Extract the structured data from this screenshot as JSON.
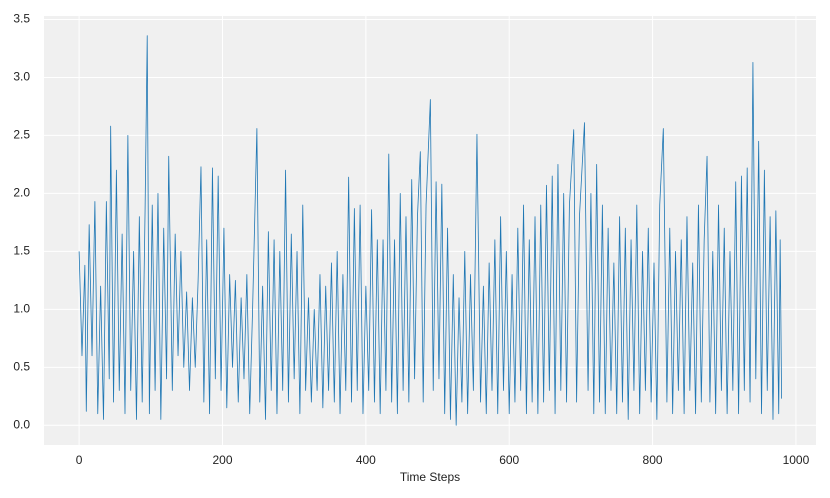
{
  "chart_data": {
    "type": "line",
    "xlabel": "Time Steps",
    "color": "#1f77b4",
    "grid": true,
    "xlim": [
      -49,
      1028
    ],
    "ylim": [
      -0.17,
      3.53
    ],
    "xticks": [
      0,
      200,
      400,
      600,
      800,
      1000
    ],
    "yticks": [
      {
        "value": 0,
        "label": "0.0"
      },
      0.5,
      {
        "value": 1,
        "label": "1.0"
      },
      1.5,
      {
        "value": 2,
        "label": "2.0"
      },
      2.5,
      {
        "value": 3,
        "label": "3.0"
      },
      3.5
    ],
    "x": [
      0,
      4,
      8,
      10,
      14,
      18,
      22,
      26,
      30,
      34,
      38,
      42,
      44,
      48,
      52,
      56,
      60,
      64,
      68,
      72,
      76,
      80,
      84,
      88,
      92,
      95,
      98,
      102,
      106,
      110,
      114,
      118,
      122,
      125,
      130,
      134,
      138,
      142,
      146,
      150,
      154,
      158,
      162,
      166,
      170,
      174,
      178,
      182,
      186,
      190,
      194,
      198,
      202,
      206,
      210,
      214,
      218,
      222,
      226,
      230,
      234,
      238,
      242,
      248,
      252,
      256,
      260,
      264,
      268,
      272,
      276,
      280,
      284,
      288,
      292,
      296,
      300,
      304,
      308,
      312,
      316,
      320,
      324,
      328,
      332,
      336,
      340,
      344,
      348,
      352,
      356,
      360,
      364,
      368,
      372,
      376,
      380,
      384,
      388,
      392,
      396,
      400,
      404,
      408,
      412,
      416,
      420,
      424,
      428,
      432,
      436,
      440,
      444,
      448,
      452,
      456,
      460,
      464,
      468,
      472,
      476,
      480,
      484,
      490,
      494,
      498,
      502,
      506,
      510,
      514,
      518,
      522,
      526,
      530,
      534,
      538,
      542,
      546,
      550,
      555,
      560,
      564,
      568,
      572,
      576,
      580,
      584,
      588,
      592,
      596,
      600,
      604,
      608,
      612,
      616,
      620,
      624,
      628,
      632,
      636,
      640,
      644,
      648,
      652,
      656,
      660,
      664,
      668,
      672,
      676,
      680,
      684,
      690,
      694,
      698,
      705,
      710,
      714,
      718,
      722,
      726,
      730,
      734,
      738,
      742,
      746,
      750,
      754,
      758,
      762,
      766,
      770,
      774,
      778,
      782,
      786,
      790,
      794,
      798,
      802,
      806,
      810,
      815,
      820,
      824,
      828,
      832,
      836,
      840,
      844,
      848,
      852,
      856,
      860,
      864,
      868,
      872,
      876,
      880,
      884,
      888,
      892,
      896,
      900,
      904,
      908,
      912,
      916,
      920,
      924,
      928,
      932,
      936,
      940,
      944,
      948,
      952,
      956,
      960,
      964,
      968,
      972,
      976,
      978,
      980
    ],
    "values": [
      1.5,
      0.6,
      1.38,
      0.12,
      1.73,
      0.6,
      1.93,
      0.1,
      1.2,
      0.05,
      1.93,
      0.4,
      2.58,
      0.2,
      2.2,
      0.3,
      1.65,
      0.1,
      2.5,
      0.3,
      1.5,
      0.05,
      1.8,
      0.2,
      1.85,
      3.36,
      0.1,
      1.9,
      0.3,
      2.0,
      0.05,
      1.7,
      0.4,
      2.32,
      0.3,
      1.65,
      0.6,
      1.5,
      0.5,
      1.15,
      0.3,
      1.1,
      0.5,
      1.25,
      2.23,
      0.2,
      1.6,
      0.1,
      2.22,
      0.4,
      2.15,
      0.3,
      1.7,
      0.15,
      1.3,
      0.5,
      1.25,
      0.2,
      1.1,
      0.4,
      1.3,
      0.1,
      1.0,
      2.56,
      0.2,
      1.2,
      0.05,
      1.67,
      0.3,
      1.6,
      0.1,
      1.5,
      0.3,
      2.2,
      0.2,
      1.65,
      0.4,
      1.5,
      0.1,
      1.9,
      0.3,
      1.1,
      0.2,
      1.0,
      0.3,
      1.3,
      0.15,
      1.2,
      0.3,
      1.4,
      0.2,
      1.5,
      0.1,
      1.3,
      0.3,
      2.14,
      0.2,
      1.87,
      0.3,
      1.9,
      0.1,
      1.2,
      0.3,
      1.86,
      0.2,
      1.6,
      0.1,
      1.6,
      0.3,
      2.34,
      0.2,
      1.6,
      0.1,
      2.0,
      0.3,
      1.8,
      0.2,
      2.12,
      0.4,
      1.8,
      2.36,
      0.2,
      1.9,
      2.81,
      0.3,
      2.1,
      0.4,
      2.08,
      0.1,
      1.7,
      0.05,
      1.3,
      0.0,
      1.1,
      0.2,
      1.5,
      0.1,
      1.3,
      0.3,
      2.51,
      0.2,
      1.2,
      0.1,
      1.4,
      0.3,
      1.6,
      0.1,
      1.8,
      0.3,
      1.5,
      0.1,
      1.3,
      0.2,
      1.7,
      0.3,
      1.9,
      0.1,
      1.6,
      0.2,
      1.8,
      0.1,
      1.9,
      0.2,
      2.07,
      0.3,
      2.15,
      0.1,
      2.25,
      0.3,
      2.0,
      0.2,
      1.9,
      2.55,
      0.2,
      1.8,
      2.61,
      0.3,
      2.0,
      0.1,
      2.25,
      0.2,
      1.9,
      0.1,
      1.7,
      0.3,
      1.4,
      0.1,
      1.8,
      0.2,
      1.7,
      0.05,
      1.6,
      0.3,
      1.9,
      0.1,
      1.5,
      0.3,
      1.7,
      0.2,
      1.4,
      0.05,
      1.9,
      2.56,
      0.2,
      1.7,
      0.1,
      1.5,
      0.3,
      1.6,
      0.1,
      1.8,
      0.3,
      1.4,
      0.1,
      1.9,
      0.2,
      1.6,
      2.32,
      0.2,
      1.5,
      0.1,
      1.9,
      0.3,
      1.7,
      0.1,
      1.5,
      0.3,
      2.1,
      0.1,
      2.15,
      0.3,
      2.22,
      0.2,
      3.13,
      0.4,
      2.45,
      0.1,
      2.2,
      0.3,
      1.8,
      0.05,
      1.85,
      0.1,
      1.6,
      0.23
    ]
  }
}
